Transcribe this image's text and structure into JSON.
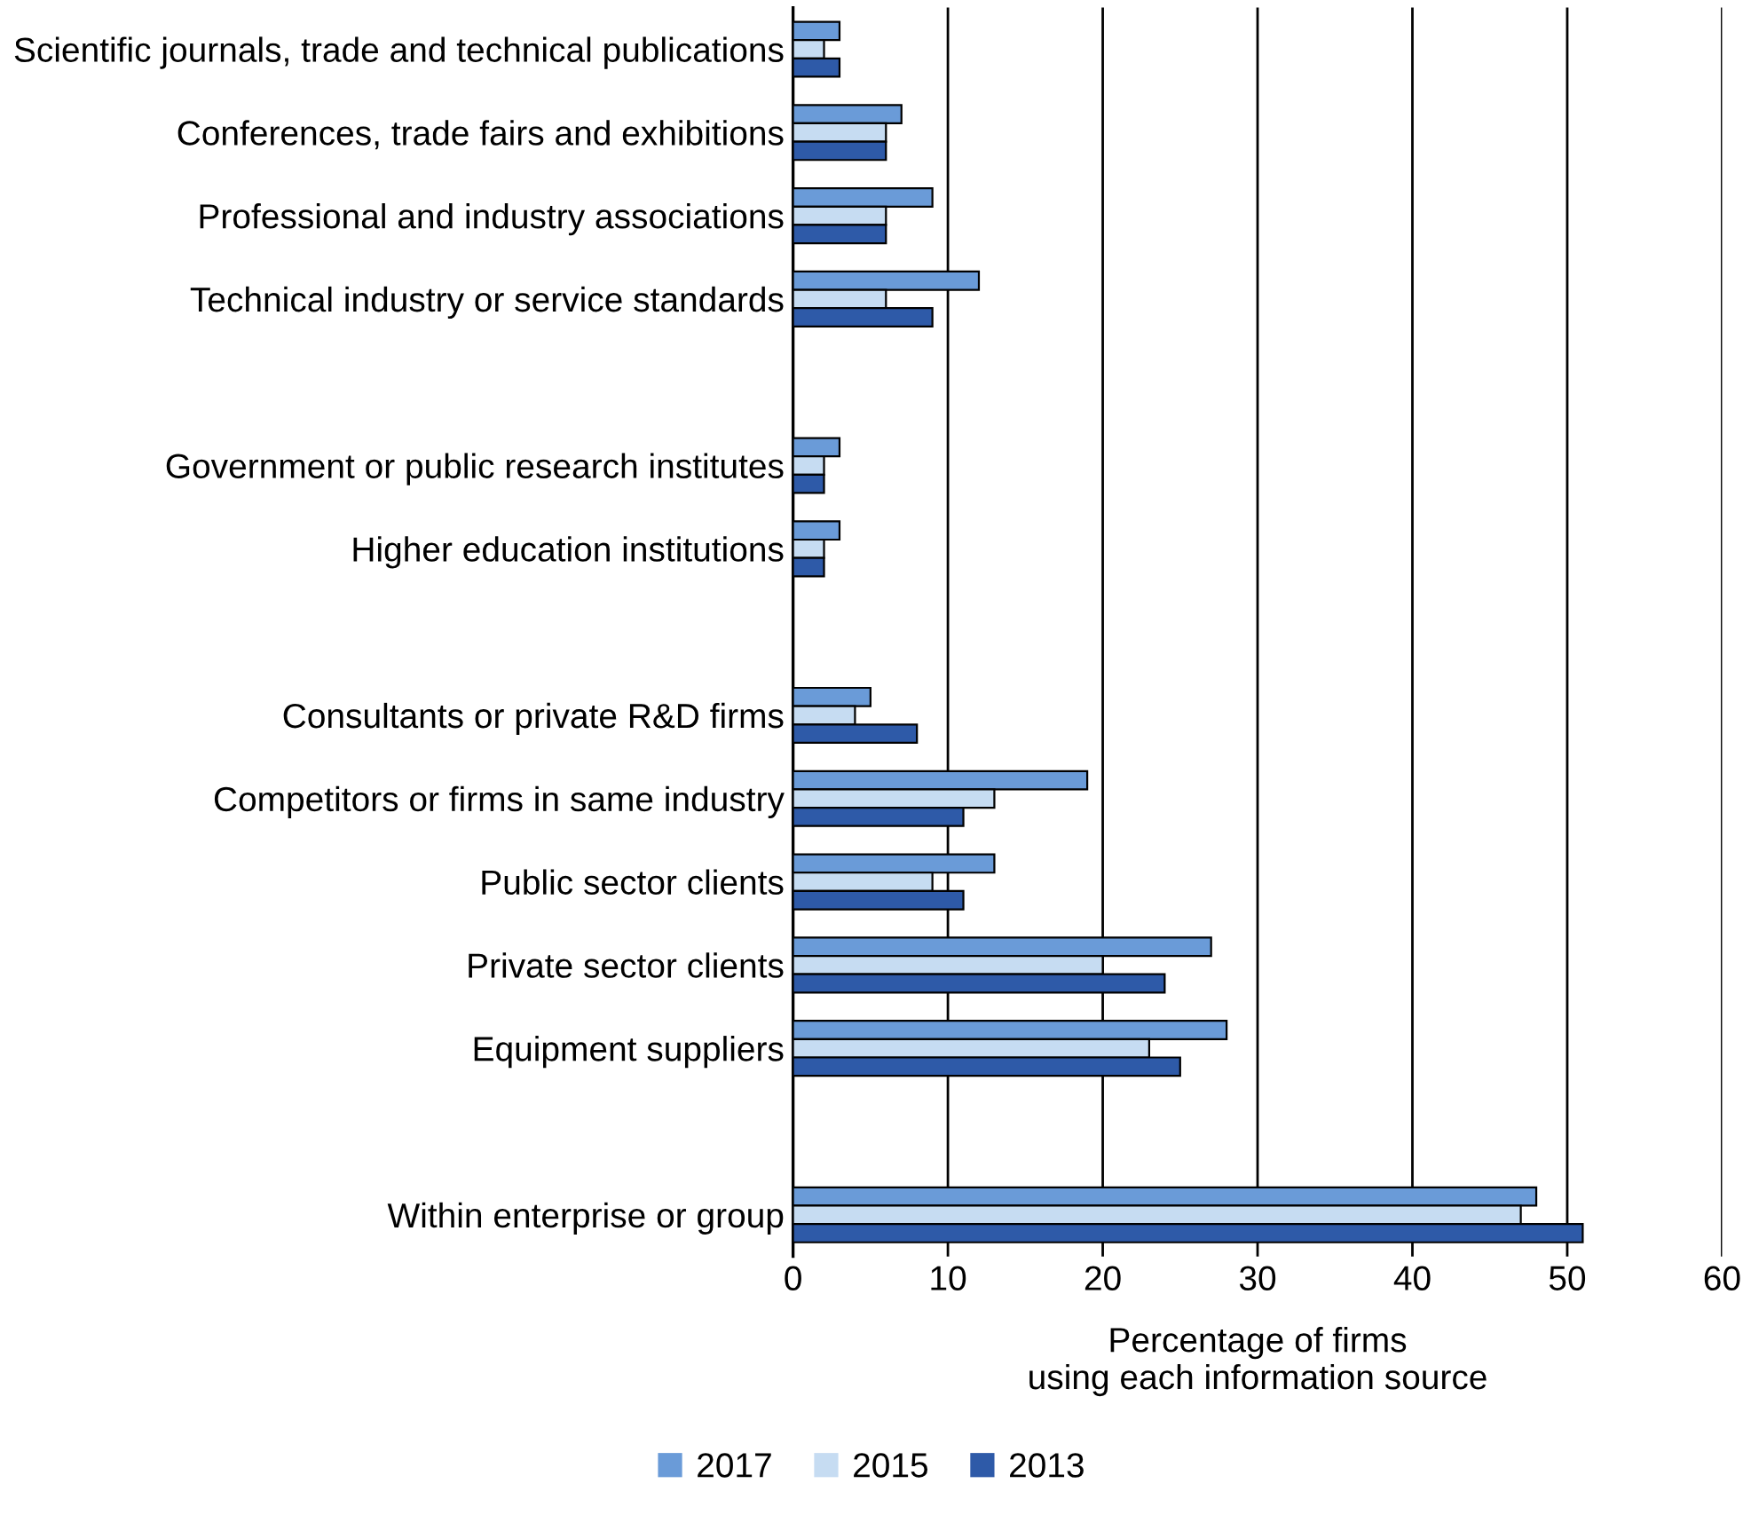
{
  "chart_data": {
    "type": "bar",
    "orientation": "horizontal",
    "xlabel": "Percentage of firms\nusing each information source",
    "categories": [
      "Scientific journals, trade and technical publications",
      "Conferences, trade fairs and exhibitions",
      "Professional and industry associations",
      "Technical industry or service standards",
      null,
      "Government or public research institutes",
      "Higher education institutions",
      null,
      "Consultants or private R&D firms",
      "Competitors or firms in same industry",
      "Public sector clients",
      "Private sector clients",
      "Equipment suppliers",
      null,
      "Within enterprise or group"
    ],
    "series": [
      {
        "name": "2017",
        "color": "#6a9bd8",
        "values": [
          3,
          7,
          9,
          12,
          null,
          3,
          3,
          null,
          5,
          19,
          13,
          27,
          28,
          null,
          48
        ]
      },
      {
        "name": "2015",
        "color": "#c6dcf2",
        "values": [
          2,
          6,
          6,
          6,
          null,
          2,
          2,
          null,
          4,
          13,
          9,
          20,
          23,
          null,
          47
        ]
      },
      {
        "name": "2013",
        "color": "#2e5aa8",
        "values": [
          3,
          6,
          6,
          9,
          null,
          2,
          2,
          null,
          8,
          11,
          11,
          24,
          25,
          null,
          51
        ]
      }
    ],
    "xlim": [
      0,
      60
    ],
    "xticks": [
      0,
      10,
      20,
      30,
      40,
      50,
      60
    ],
    "grid": "x",
    "legend": "bottom"
  }
}
